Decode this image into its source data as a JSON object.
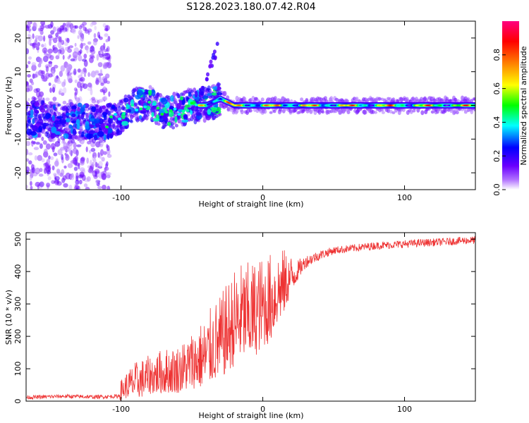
{
  "chart_data": [
    {
      "type": "heatmap",
      "title": "S128.2023.180.07.42.R04",
      "xlabel": "Height of straight line (km)",
      "ylabel": "Frequency (Hz)",
      "xlim": [
        -167,
        150
      ],
      "ylim": [
        -25,
        25
      ],
      "xticks": [
        -100,
        0,
        100
      ],
      "yticks": [
        -20,
        -10,
        0,
        10,
        20
      ],
      "colorbar": {
        "label": "Normalized spectral amplitude",
        "range": [
          0.0,
          1.0
        ],
        "ticks": [
          0.0,
          0.2,
          0.4,
          0.6,
          0.8
        ],
        "tick_labels": [
          "0.0",
          "0.2",
          "0.4",
          "0.6",
          "0.8"
        ],
        "colormap": [
          "#ffffff",
          "#6a00ff",
          "#0000ff",
          "#00ffff",
          "#00ff00",
          "#ffff00",
          "#ff8000",
          "#ff0000",
          "#ff0080"
        ]
      },
      "features": {
        "noise_region_x": [
          -167,
          -108
        ],
        "carrier_freq_profile": [
          {
            "x": -160,
            "f": -4
          },
          {
            "x": -140,
            "f": -4.5
          },
          {
            "x": -120,
            "f": -5
          },
          {
            "x": -110,
            "f": -5
          },
          {
            "x": -100,
            "f": -3
          },
          {
            "x": -90,
            "f": 0
          },
          {
            "x": -80,
            "f": 1
          },
          {
            "x": -70,
            "f": -2
          },
          {
            "x": -60,
            "f": -1.5
          },
          {
            "x": -50,
            "f": 0
          },
          {
            "x": -40,
            "f": 0
          },
          {
            "x": -30,
            "f": 2
          },
          {
            "x": -20,
            "f": 0
          },
          {
            "x": -10,
            "f": 0
          },
          {
            "x": 0,
            "f": 0
          },
          {
            "x": 50,
            "f": 0
          },
          {
            "x": 100,
            "f": 0
          },
          {
            "x": 150,
            "f": 0
          }
        ]
      }
    },
    {
      "type": "line",
      "title": "",
      "xlabel": "Height of straight line (km)",
      "ylabel": "SNR (10 * v/v)",
      "xlim": [
        -167,
        150
      ],
      "ylim": [
        0,
        520
      ],
      "xticks": [
        -100,
        0,
        100
      ],
      "yticks": [
        0,
        100,
        200,
        300,
        400,
        500
      ],
      "color": "#ee3333",
      "series": [
        {
          "x": [
            -167,
            -160,
            -150,
            -140,
            -130,
            -120,
            -110,
            -102,
            -100,
            -95,
            -90,
            -85,
            -80,
            -75,
            -70,
            -65,
            -60,
            -55,
            -50,
            -45,
            -40,
            -35,
            -30,
            -25,
            -20,
            -15,
            -10,
            -5,
            0,
            5,
            10,
            15,
            20,
            25,
            30,
            40,
            50,
            60,
            70,
            80,
            90,
            100,
            110,
            120,
            130,
            140,
            150
          ],
          "values": [
            12,
            12,
            14,
            15,
            14,
            13,
            14,
            15,
            30,
            45,
            55,
            60,
            70,
            75,
            80,
            82,
            85,
            95,
            110,
            120,
            130,
            160,
            170,
            200,
            230,
            250,
            250,
            260,
            280,
            290,
            330,
            350,
            380,
            400,
            430,
            450,
            465,
            470,
            475,
            480,
            482,
            485,
            488,
            490,
            492,
            495,
            497
          ],
          "noise_amplitude": [
            6,
            6,
            6,
            6,
            6,
            6,
            6,
            6,
            30,
            45,
            55,
            60,
            60,
            65,
            70,
            70,
            75,
            80,
            90,
            100,
            110,
            120,
            130,
            140,
            150,
            150,
            150,
            150,
            140,
            140,
            120,
            100,
            60,
            30,
            20,
            15,
            12,
            12,
            12,
            12,
            12,
            12,
            12,
            12,
            12,
            12,
            12
          ]
        }
      ]
    }
  ]
}
